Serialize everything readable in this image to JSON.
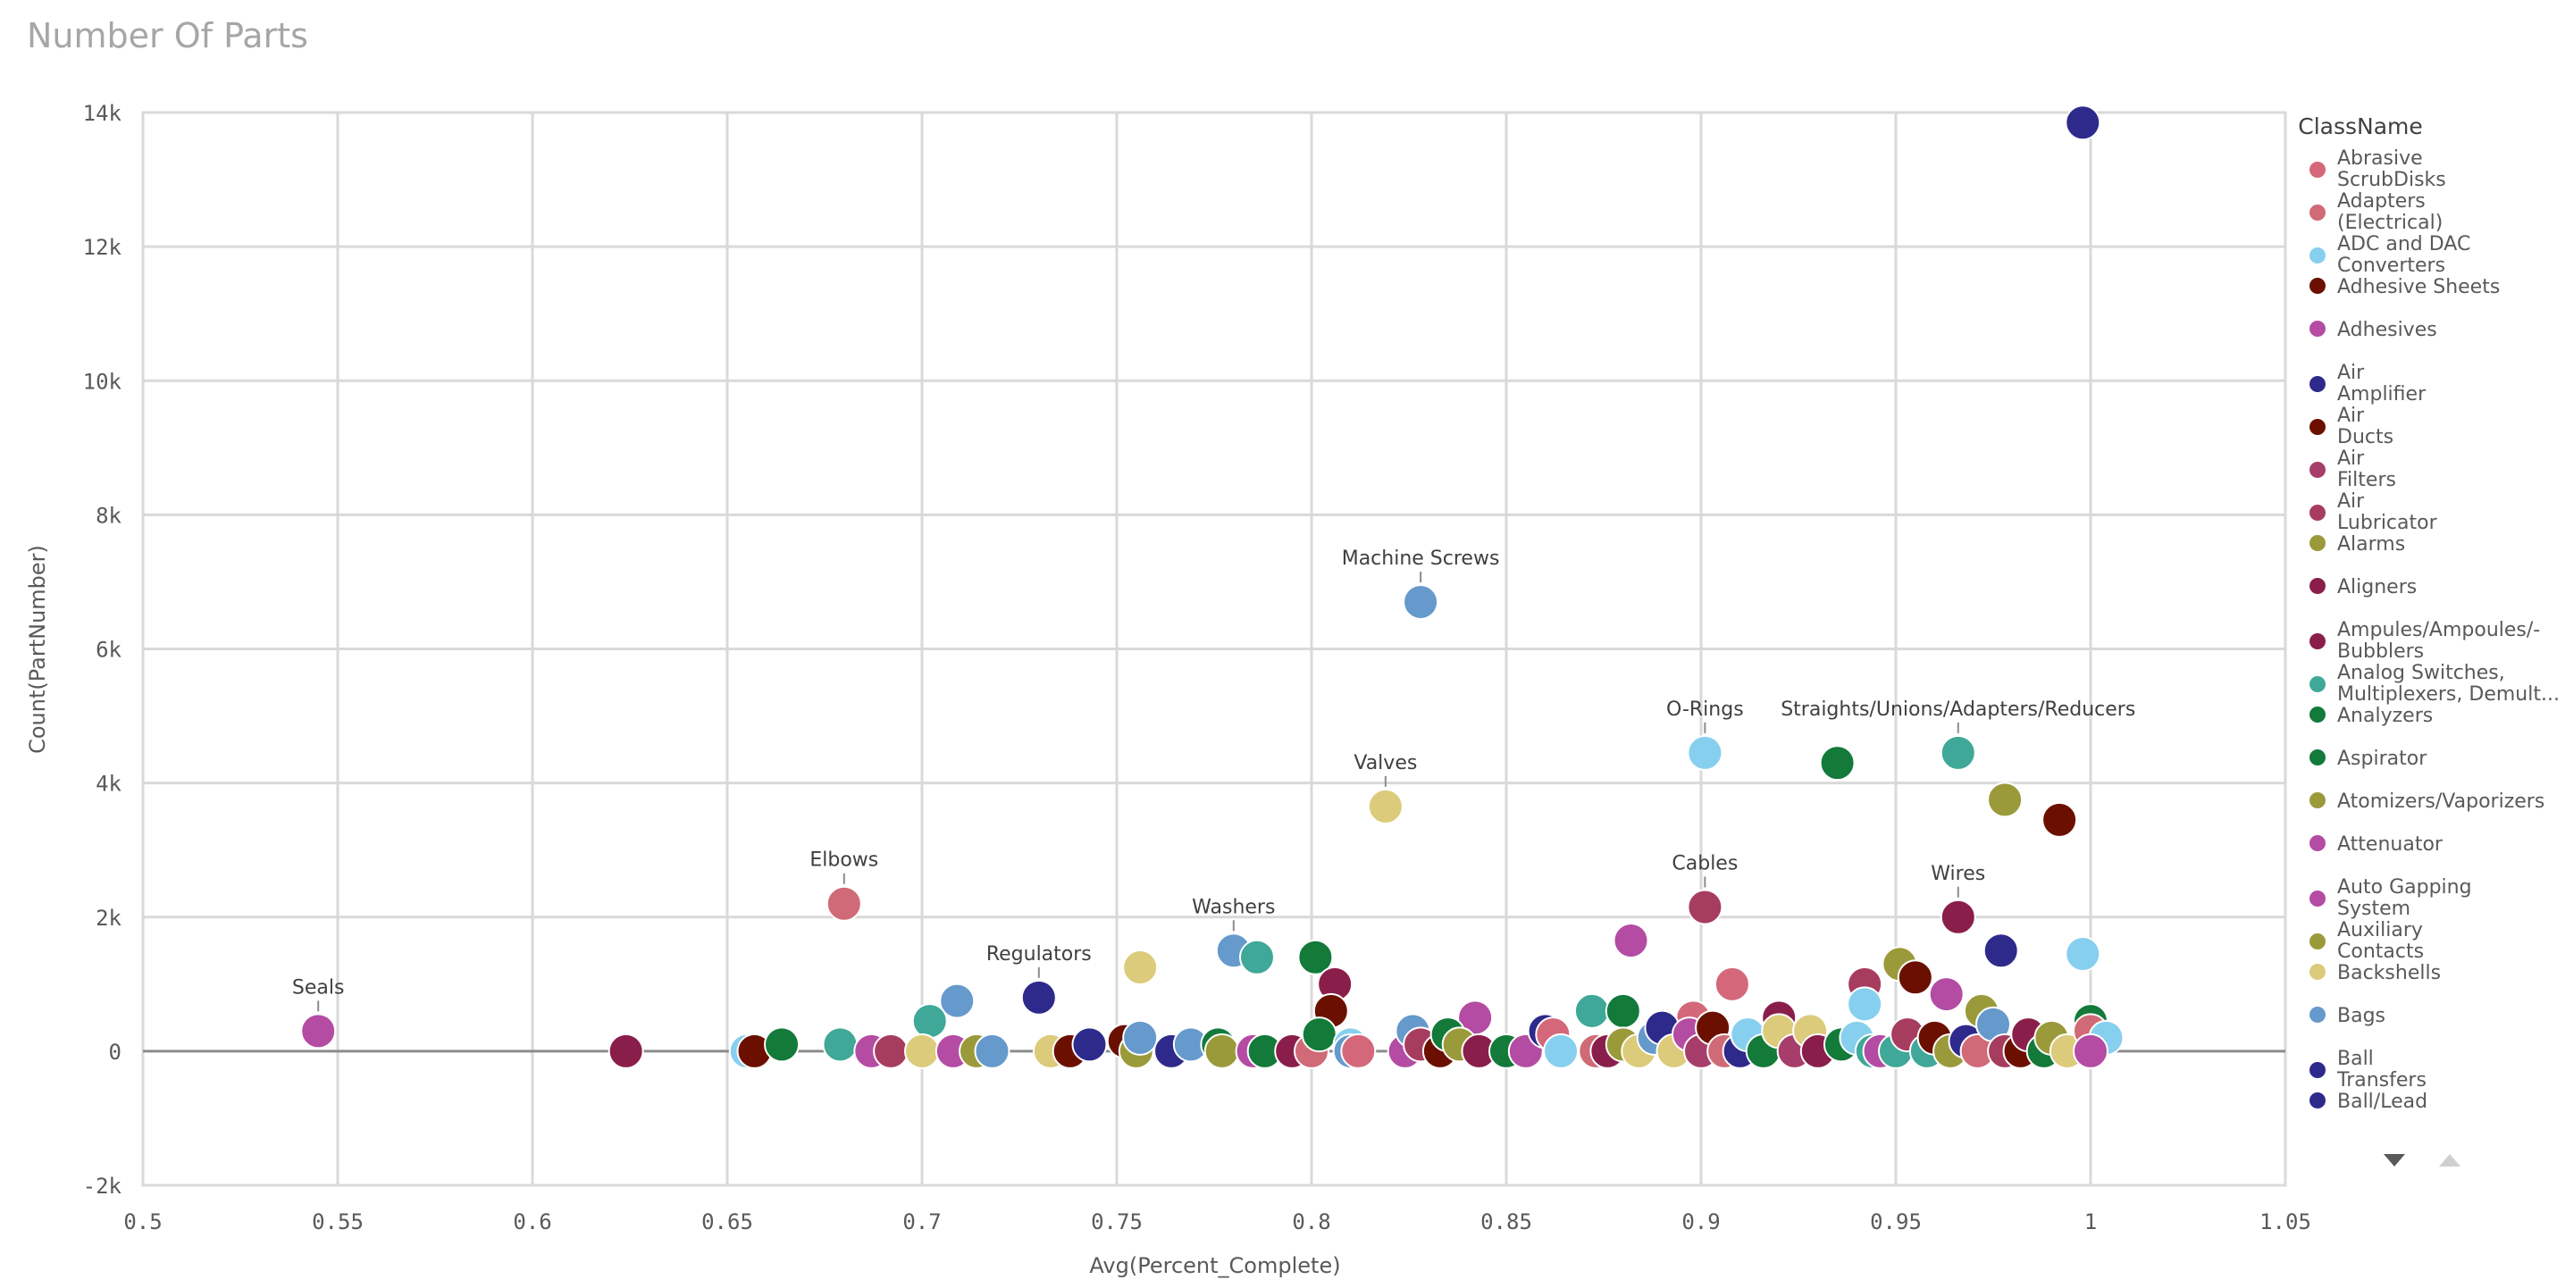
{
  "chart_data": {
    "type": "scatter",
    "title": "Number Of Parts",
    "xlabel": "Avg(Percent_Complete)",
    "ylabel": "Count(PartNumber)",
    "xlim": [
      0.5,
      1.05
    ],
    "ylim": [
      -2000,
      14000
    ],
    "xticks": [
      "0.5",
      "0.55",
      "0.6",
      "0.65",
      "0.7",
      "0.75",
      "0.8",
      "0.85",
      "0.9",
      "0.95",
      "1",
      "1.05"
    ],
    "xtick_values": [
      0.5,
      0.55,
      0.6,
      0.65,
      0.7,
      0.75,
      0.8,
      0.85,
      0.9,
      0.95,
      1.0,
      1.05
    ],
    "yticks": [
      "-2k",
      "0",
      "2k",
      "4k",
      "6k",
      "8k",
      "10k",
      "12k",
      "14k"
    ],
    "ytick_values": [
      -2000,
      0,
      2000,
      4000,
      6000,
      8000,
      10000,
      12000,
      14000
    ],
    "grid": true,
    "legend_placement": "right",
    "legend": {
      "title": "ClassName",
      "items": [
        {
          "label": [
            "Abrasive",
            "ScrubDisks"
          ],
          "color": "#d4687a"
        },
        {
          "label": [
            "Adapters",
            "(Electrical)"
          ],
          "color": "#d06a76"
        },
        {
          "label": [
            "ADC and DAC",
            "Converters"
          ],
          "color": "#87cfee"
        },
        {
          "label": [
            "Adhesive Sheets"
          ],
          "color": "#6b1000"
        },
        {
          "label": [
            "Adhesives"
          ],
          "color": "#b44ca3"
        },
        {
          "label": [
            "Air",
            "Amplifier"
          ],
          "color": "#2e2a8c"
        },
        {
          "label": [
            "Air",
            "Ducts"
          ],
          "color": "#6b1000"
        },
        {
          "label": [
            "Air",
            "Filters"
          ],
          "color": "#a73d6a"
        },
        {
          "label": [
            "Air",
            "Lubricator"
          ],
          "color": "#a73d5e"
        },
        {
          "label": [
            "Alarms"
          ],
          "color": "#9a9a3a"
        },
        {
          "label": [
            "Aligners"
          ],
          "color": "#8a1e4a"
        },
        {
          "label": [
            "Ampules/Ampoules/-",
            "Bubblers"
          ],
          "color": "#8a1e4a"
        },
        {
          "label": [
            "Analog Switches,",
            "Multiplexers, Demult..."
          ],
          "color": "#3fa898"
        },
        {
          "label": [
            "Analyzers"
          ],
          "color": "#137a3a"
        },
        {
          "label": [
            "Aspirator"
          ],
          "color": "#137a3a"
        },
        {
          "label": [
            "Atomizers/Vaporizers"
          ],
          "color": "#9a9a3a"
        },
        {
          "label": [
            "Attenuator"
          ],
          "color": "#b44ca3"
        },
        {
          "label": [
            "Auto Gapping",
            "System"
          ],
          "color": "#b44ca3"
        },
        {
          "label": [
            "Auxiliary",
            "Contacts"
          ],
          "color": "#9a9a3a"
        },
        {
          "label": [
            "Backshells"
          ],
          "color": "#dccb7a"
        },
        {
          "label": [
            "Bags"
          ],
          "color": "#6699cc"
        },
        {
          "label": [
            "Ball",
            "Transfers"
          ],
          "color": "#2e2a8c"
        },
        {
          "label": [
            "Ball/Lead"
          ],
          "color": "#2e2a8c"
        }
      ]
    },
    "annotations": [
      {
        "text": "Machine Screws",
        "x": 0.828,
        "y": 6700
      },
      {
        "text": "O-Rings",
        "x": 0.901,
        "y": 4450
      },
      {
        "text": "Straights/Unions/Adapters/Reducers",
        "x": 0.966,
        "y": 4450
      },
      {
        "text": "Valves",
        "x": 0.819,
        "y": 3650
      },
      {
        "text": "Elbows",
        "x": 0.68,
        "y": 2200
      },
      {
        "text": "Cables",
        "x": 0.901,
        "y": 2150
      },
      {
        "text": "Wires",
        "x": 0.966,
        "y": 2000
      },
      {
        "text": "Washers",
        "x": 0.78,
        "y": 1500
      },
      {
        "text": "Regulators",
        "x": 0.73,
        "y": 800
      },
      {
        "text": "Seals",
        "x": 0.545,
        "y": 300
      }
    ],
    "points": [
      {
        "x": 0.998,
        "y": 13850,
        "color": "#2e2a8c"
      },
      {
        "x": 0.828,
        "y": 6700,
        "color": "#6699cc"
      },
      {
        "x": 0.901,
        "y": 4450,
        "color": "#87cfee"
      },
      {
        "x": 0.966,
        "y": 4450,
        "color": "#3fa898"
      },
      {
        "x": 0.935,
        "y": 4300,
        "color": "#137a3a"
      },
      {
        "x": 0.978,
        "y": 3750,
        "color": "#9a9a3a"
      },
      {
        "x": 0.992,
        "y": 3450,
        "color": "#6b1000"
      },
      {
        "x": 0.819,
        "y": 3650,
        "color": "#dccb7a"
      },
      {
        "x": 0.68,
        "y": 2200,
        "color": "#d06a76"
      },
      {
        "x": 0.901,
        "y": 2150,
        "color": "#a73d5e"
      },
      {
        "x": 0.966,
        "y": 2000,
        "color": "#8a1e4a"
      },
      {
        "x": 0.882,
        "y": 1650,
        "color": "#b44ca3"
      },
      {
        "x": 0.977,
        "y": 1500,
        "color": "#2e2a8c"
      },
      {
        "x": 0.998,
        "y": 1450,
        "color": "#87cfee"
      },
      {
        "x": 0.78,
        "y": 1500,
        "color": "#6699cc"
      },
      {
        "x": 0.786,
        "y": 1400,
        "color": "#3fa898"
      },
      {
        "x": 0.801,
        "y": 1400,
        "color": "#137a3a"
      },
      {
        "x": 0.756,
        "y": 1250,
        "color": "#dccb7a"
      },
      {
        "x": 0.951,
        "y": 1300,
        "color": "#9a9a3a"
      },
      {
        "x": 0.955,
        "y": 1100,
        "color": "#6b1000"
      },
      {
        "x": 0.908,
        "y": 1000,
        "color": "#d4687a"
      },
      {
        "x": 0.942,
        "y": 1000,
        "color": "#a73d5e"
      },
      {
        "x": 0.806,
        "y": 1000,
        "color": "#8a1e4a"
      },
      {
        "x": 0.963,
        "y": 850,
        "color": "#b44ca3"
      },
      {
        "x": 0.73,
        "y": 800,
        "color": "#2e2a8c"
      },
      {
        "x": 0.709,
        "y": 750,
        "color": "#6699cc"
      },
      {
        "x": 0.942,
        "y": 700,
        "color": "#87cfee"
      },
      {
        "x": 0.872,
        "y": 600,
        "color": "#3fa898"
      },
      {
        "x": 0.88,
        "y": 600,
        "color": "#137a3a"
      },
      {
        "x": 0.805,
        "y": 600,
        "color": "#6b1000"
      },
      {
        "x": 0.972,
        "y": 600,
        "color": "#9a9a3a"
      },
      {
        "x": 0.842,
        "y": 500,
        "color": "#b44ca3"
      },
      {
        "x": 0.92,
        "y": 500,
        "color": "#8a1e4a"
      },
      {
        "x": 0.702,
        "y": 450,
        "color": "#3fa898"
      },
      {
        "x": 0.898,
        "y": 500,
        "color": "#d4687a"
      },
      {
        "x": 0.545,
        "y": 300,
        "color": "#b44ca3"
      },
      {
        "x": 0.624,
        "y": 0,
        "color": "#8a1e4a"
      },
      {
        "x": 0.655,
        "y": 0,
        "color": "#87cfee"
      },
      {
        "x": 0.657,
        "y": 0,
        "color": "#6b1000"
      },
      {
        "x": 0.664,
        "y": 100,
        "color": "#137a3a"
      },
      {
        "x": 0.679,
        "y": 100,
        "color": "#3fa898"
      },
      {
        "x": 0.687,
        "y": 0,
        "color": "#b44ca3"
      },
      {
        "x": 0.692,
        "y": 0,
        "color": "#a73d5e"
      },
      {
        "x": 0.7,
        "y": 0,
        "color": "#dccb7a"
      },
      {
        "x": 0.708,
        "y": 0,
        "color": "#b44ca3"
      },
      {
        "x": 0.714,
        "y": 0,
        "color": "#9a9a3a"
      },
      {
        "x": 0.718,
        "y": 0,
        "color": "#6699cc"
      },
      {
        "x": 0.733,
        "y": 0,
        "color": "#dccb7a"
      },
      {
        "x": 0.738,
        "y": 0,
        "color": "#6b1000"
      },
      {
        "x": 0.743,
        "y": 100,
        "color": "#2e2a8c"
      },
      {
        "x": 0.752,
        "y": 150,
        "color": "#6b1000"
      },
      {
        "x": 0.755,
        "y": 0,
        "color": "#9a9a3a"
      },
      {
        "x": 0.756,
        "y": 200,
        "color": "#6699cc"
      },
      {
        "x": 0.764,
        "y": 0,
        "color": "#2e2a8c"
      },
      {
        "x": 0.769,
        "y": 100,
        "color": "#6699cc"
      },
      {
        "x": 0.776,
        "y": 100,
        "color": "#137a3a"
      },
      {
        "x": 0.777,
        "y": 0,
        "color": "#9a9a3a"
      },
      {
        "x": 0.785,
        "y": 0,
        "color": "#b44ca3"
      },
      {
        "x": 0.788,
        "y": 0,
        "color": "#137a3a"
      },
      {
        "x": 0.795,
        "y": 0,
        "color": "#8a1e4a"
      },
      {
        "x": 0.8,
        "y": 0,
        "color": "#d06a76"
      },
      {
        "x": 0.802,
        "y": 250,
        "color": "#137a3a"
      },
      {
        "x": 0.81,
        "y": 100,
        "color": "#87cfee"
      },
      {
        "x": 0.81,
        "y": 0,
        "color": "#6699cc"
      },
      {
        "x": 0.812,
        "y": 0,
        "color": "#d4687a"
      },
      {
        "x": 0.824,
        "y": 0,
        "color": "#b44ca3"
      },
      {
        "x": 0.826,
        "y": 300,
        "color": "#6699cc"
      },
      {
        "x": 0.828,
        "y": 100,
        "color": "#a73d5e"
      },
      {
        "x": 0.833,
        "y": 0,
        "color": "#6b1000"
      },
      {
        "x": 0.835,
        "y": 250,
        "color": "#137a3a"
      },
      {
        "x": 0.838,
        "y": 100,
        "color": "#9a9a3a"
      },
      {
        "x": 0.843,
        "y": 0,
        "color": "#8a1e4a"
      },
      {
        "x": 0.85,
        "y": 0,
        "color": "#137a3a"
      },
      {
        "x": 0.855,
        "y": 0,
        "color": "#b44ca3"
      },
      {
        "x": 0.86,
        "y": 300,
        "color": "#2e2a8c"
      },
      {
        "x": 0.862,
        "y": 250,
        "color": "#d4687a"
      },
      {
        "x": 0.864,
        "y": 0,
        "color": "#87cfee"
      },
      {
        "x": 0.873,
        "y": 0,
        "color": "#d06a76"
      },
      {
        "x": 0.876,
        "y": 0,
        "color": "#8a1e4a"
      },
      {
        "x": 0.88,
        "y": 100,
        "color": "#9a9a3a"
      },
      {
        "x": 0.884,
        "y": 0,
        "color": "#dccb7a"
      },
      {
        "x": 0.888,
        "y": 200,
        "color": "#6699cc"
      },
      {
        "x": 0.89,
        "y": 350,
        "color": "#2e2a8c"
      },
      {
        "x": 0.893,
        "y": 0,
        "color": "#dccb7a"
      },
      {
        "x": 0.897,
        "y": 250,
        "color": "#b44ca3"
      },
      {
        "x": 0.9,
        "y": 0,
        "color": "#a73d6a"
      },
      {
        "x": 0.903,
        "y": 350,
        "color": "#6b1000"
      },
      {
        "x": 0.906,
        "y": 0,
        "color": "#d06a76"
      },
      {
        "x": 0.91,
        "y": 0,
        "color": "#2e2a8c"
      },
      {
        "x": 0.912,
        "y": 250,
        "color": "#87cfee"
      },
      {
        "x": 0.916,
        "y": 0,
        "color": "#137a3a"
      },
      {
        "x": 0.92,
        "y": 300,
        "color": "#dccb7a"
      },
      {
        "x": 0.924,
        "y": 0,
        "color": "#a73d6a"
      },
      {
        "x": 0.928,
        "y": 300,
        "color": "#dccb7a"
      },
      {
        "x": 0.93,
        "y": 0,
        "color": "#8a1e4a"
      },
      {
        "x": 0.936,
        "y": 100,
        "color": "#137a3a"
      },
      {
        "x": 0.94,
        "y": 200,
        "color": "#87cfee"
      },
      {
        "x": 0.944,
        "y": 0,
        "color": "#3fa898"
      },
      {
        "x": 0.946,
        "y": 0,
        "color": "#b44ca3"
      },
      {
        "x": 0.95,
        "y": 0,
        "color": "#3fa898"
      },
      {
        "x": 0.953,
        "y": 250,
        "color": "#a73d5e"
      },
      {
        "x": 0.958,
        "y": 0,
        "color": "#3fa898"
      },
      {
        "x": 0.96,
        "y": 200,
        "color": "#6b1000"
      },
      {
        "x": 0.964,
        "y": 0,
        "color": "#9a9a3a"
      },
      {
        "x": 0.968,
        "y": 150,
        "color": "#2e2a8c"
      },
      {
        "x": 0.971,
        "y": 0,
        "color": "#d06a76"
      },
      {
        "x": 0.975,
        "y": 400,
        "color": "#6699cc"
      },
      {
        "x": 0.978,
        "y": 0,
        "color": "#a73d5e"
      },
      {
        "x": 0.982,
        "y": 0,
        "color": "#6b1000"
      },
      {
        "x": 0.984,
        "y": 250,
        "color": "#8a1e4a"
      },
      {
        "x": 0.988,
        "y": 0,
        "color": "#137a3a"
      },
      {
        "x": 0.99,
        "y": 200,
        "color": "#9a9a3a"
      },
      {
        "x": 0.994,
        "y": 0,
        "color": "#dccb7a"
      },
      {
        "x": 1.0,
        "y": 450,
        "color": "#137a3a"
      },
      {
        "x": 1.0,
        "y": 300,
        "color": "#d06a76"
      },
      {
        "x": 1.004,
        "y": 200,
        "color": "#87cfee"
      },
      {
        "x": 1.0,
        "y": 0,
        "color": "#b44ca3"
      }
    ]
  }
}
